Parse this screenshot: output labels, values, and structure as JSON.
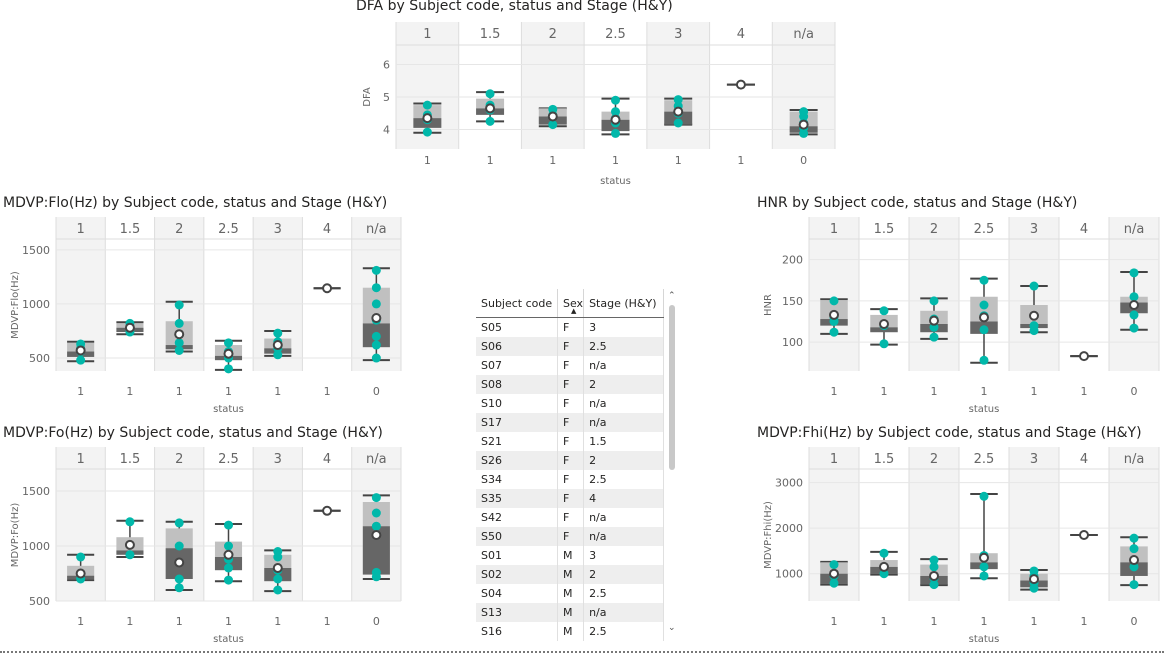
{
  "colors": {
    "teal": "#01b8aa",
    "dark": "#444444",
    "iqr_dark": "#666666",
    "iqr_light": "#c0c0c0",
    "panel_shade": "#f3f3f3",
    "grid": "#e6e6e6",
    "text": "#666666"
  },
  "chart_data": [
    {
      "id": "dfa",
      "type": "boxplot",
      "title": "DFA by Subject code, status and Stage (H&Y)",
      "ylabel": "DFA",
      "xlabel": "status",
      "ylim": [
        3.4,
        6.6
      ],
      "yticks": [
        4,
        5,
        6
      ],
      "facets": [
        "1",
        "1.5",
        "2",
        "2.5",
        "3",
        "4",
        "n/a"
      ],
      "status": [
        "1",
        "1",
        "1",
        "1",
        "1",
        "1",
        "0"
      ],
      "boxes": [
        {
          "min": 3.9,
          "q1": 4.05,
          "median": 4.35,
          "q3": 4.75,
          "max": 4.8,
          "mean": 4.35,
          "points": [
            3.92,
            4.3,
            4.45,
            4.75
          ]
        },
        {
          "min": 4.25,
          "q1": 4.45,
          "median": 4.65,
          "q3": 4.95,
          "max": 5.15,
          "mean": 4.65,
          "points": [
            4.25,
            4.6,
            4.75,
            5.1
          ]
        },
        {
          "min": 4.1,
          "q1": 4.15,
          "median": 4.4,
          "q3": 4.65,
          "max": 4.65,
          "mean": 4.4,
          "points": [
            4.15,
            4.45,
            4.62
          ]
        },
        {
          "min": 3.85,
          "q1": 3.95,
          "median": 4.3,
          "q3": 4.55,
          "max": 4.95,
          "mean": 4.3,
          "points": [
            3.88,
            4.2,
            4.35,
            4.55,
            4.9
          ]
        },
        {
          "min": 4.15,
          "q1": 4.15,
          "median": 4.55,
          "q3": 4.9,
          "max": 4.95,
          "mean": 4.55,
          "points": [
            4.2,
            4.5,
            4.72,
            4.92
          ]
        },
        {
          "min": 5.38,
          "q1": 5.38,
          "median": 5.38,
          "q3": 5.38,
          "max": 5.38,
          "mean": 5.38,
          "points": []
        },
        {
          "min": 3.85,
          "q1": 3.9,
          "median": 4.1,
          "q3": 4.55,
          "max": 4.6,
          "mean": 4.15,
          "points": [
            3.88,
            4.05,
            4.2,
            4.4,
            4.55
          ]
        }
      ]
    },
    {
      "id": "flo",
      "type": "boxplot",
      "title": "MDVP:Flo(Hz) by Subject code, status and Stage (H&Y)",
      "ylabel": "MDVP:Flo(Hz)",
      "xlabel": "status",
      "ylim": [
        380,
        1600
      ],
      "yticks": [
        500,
        1000,
        1500
      ],
      "facets": [
        "1",
        "1.5",
        "2",
        "2.5",
        "3",
        "4",
        "n/a"
      ],
      "status": [
        "1",
        "1",
        "1",
        "1",
        "1",
        "1",
        "0"
      ],
      "boxes": [
        {
          "min": 470,
          "q1": 510,
          "median": 560,
          "q3": 640,
          "max": 650,
          "mean": 570,
          "points": [
            480,
            560,
            590,
            630
          ]
        },
        {
          "min": 720,
          "q1": 740,
          "median": 780,
          "q3": 820,
          "max": 830,
          "mean": 780,
          "points": [
            740,
            780,
            820
          ]
        },
        {
          "min": 560,
          "q1": 580,
          "median": 620,
          "q3": 840,
          "max": 1020,
          "mean": 720,
          "points": [
            570,
            640,
            820,
            990
          ]
        },
        {
          "min": 390,
          "q1": 480,
          "median": 520,
          "q3": 620,
          "max": 660,
          "mean": 540,
          "points": [
            400,
            500,
            560,
            640
          ]
        },
        {
          "min": 520,
          "q1": 540,
          "median": 590,
          "q3": 680,
          "max": 750,
          "mean": 620,
          "points": [
            530,
            590,
            650,
            730
          ]
        },
        {
          "min": 1145,
          "q1": 1145,
          "median": 1145,
          "q3": 1145,
          "max": 1145,
          "mean": 1145,
          "points": []
        },
        {
          "min": 480,
          "q1": 600,
          "median": 820,
          "q3": 1150,
          "max": 1330,
          "mean": 870,
          "points": [
            500,
            620,
            700,
            850,
            1000,
            1150,
            1310
          ]
        }
      ]
    },
    {
      "id": "fo",
      "type": "boxplot",
      "title": "MDVP:Fo(Hz) by Subject code, status and Stage (H&Y)",
      "ylabel": "MDVP:Fo(Hz)",
      "xlabel": "status",
      "ylim": [
        500,
        1700
      ],
      "yticks": [
        500,
        1000,
        1500
      ],
      "facets": [
        "1",
        "1.5",
        "2",
        "2.5",
        "3",
        "4",
        "n/a"
      ],
      "status": [
        "1",
        "1",
        "1",
        "1",
        "1",
        "1",
        "0"
      ],
      "boxes": [
        {
          "min": 690,
          "q1": 700,
          "median": 730,
          "q3": 820,
          "max": 920,
          "mean": 750,
          "points": [
            700,
            750,
            900
          ]
        },
        {
          "min": 900,
          "q1": 920,
          "median": 960,
          "q3": 1080,
          "max": 1230,
          "mean": 1010,
          "points": [
            920,
            1010,
            1220
          ]
        },
        {
          "min": 600,
          "q1": 700,
          "median": 980,
          "q3": 1160,
          "max": 1220,
          "mean": 850,
          "points": [
            620,
            700,
            1000,
            1210
          ]
        },
        {
          "min": 680,
          "q1": 780,
          "median": 900,
          "q3": 1040,
          "max": 1200,
          "mean": 920,
          "points": [
            690,
            800,
            880,
            1000,
            1190
          ]
        },
        {
          "min": 590,
          "q1": 680,
          "median": 800,
          "q3": 920,
          "max": 960,
          "mean": 800,
          "points": [
            600,
            700,
            780,
            900,
            950
          ]
        },
        {
          "min": 1320,
          "q1": 1320,
          "median": 1320,
          "q3": 1320,
          "max": 1320,
          "mean": 1320,
          "points": []
        },
        {
          "min": 700,
          "q1": 740,
          "median": 1180,
          "q3": 1400,
          "max": 1460,
          "mean": 1100,
          "points": [
            720,
            760,
            1180,
            1300,
            1440
          ]
        }
      ]
    },
    {
      "id": "hnr",
      "type": "boxplot",
      "title": "HNR by Subject code, status and Stage (H&Y)",
      "ylabel": "HNR",
      "xlabel": "status",
      "ylim": [
        65,
        225
      ],
      "yticks": [
        100,
        150,
        200
      ],
      "facets": [
        "1",
        "1.5",
        "2",
        "2.5",
        "3",
        "4",
        "n/a"
      ],
      "status": [
        "1",
        "1",
        "1",
        "1",
        "1",
        "1",
        "0"
      ],
      "boxes": [
        {
          "min": 110,
          "q1": 120,
          "median": 128,
          "q3": 150,
          "max": 152,
          "mean": 133,
          "points": [
            112,
            125,
            130,
            150
          ]
        },
        {
          "min": 97,
          "q1": 112,
          "median": 118,
          "q3": 133,
          "max": 140,
          "mean": 122,
          "points": [
            98,
            120,
            138
          ]
        },
        {
          "min": 104,
          "q1": 112,
          "median": 122,
          "q3": 138,
          "max": 153,
          "mean": 126,
          "points": [
            106,
            118,
            128,
            150
          ]
        },
        {
          "min": 75,
          "q1": 110,
          "median": 125,
          "q3": 155,
          "max": 177,
          "mean": 130,
          "points": [
            78,
            115,
            132,
            145,
            175
          ]
        },
        {
          "min": 112,
          "q1": 117,
          "median": 122,
          "q3": 145,
          "max": 168,
          "mean": 132,
          "points": [
            114,
            120,
            168
          ]
        },
        {
          "min": 83,
          "q1": 83,
          "median": 83,
          "q3": 83,
          "max": 83,
          "mean": 83,
          "points": []
        },
        {
          "min": 115,
          "q1": 135,
          "median": 148,
          "q3": 155,
          "max": 185,
          "mean": 145,
          "points": [
            117,
            133,
            145,
            155,
            184
          ]
        }
      ]
    },
    {
      "id": "fhi",
      "type": "boxplot",
      "title": "MDVP:Fhi(Hz) by Subject code, status and Stage (H&Y)",
      "ylabel": "MDVP:Fhi(Hz)",
      "xlabel": "status",
      "ylim": [
        400,
        3300
      ],
      "yticks": [
        1000,
        2000,
        3000
      ],
      "facets": [
        "1",
        "1.5",
        "2",
        "2.5",
        "3",
        "4",
        "n/a"
      ],
      "status": [
        "1",
        "1",
        "1",
        "1",
        "1",
        "1",
        "0"
      ],
      "boxes": [
        {
          "min": 760,
          "q1": 780,
          "median": 1000,
          "q3": 1250,
          "max": 1260,
          "mean": 1000,
          "points": [
            790,
            950,
            1200
          ]
        },
        {
          "min": 980,
          "q1": 1000,
          "median": 1150,
          "q3": 1300,
          "max": 1480,
          "mean": 1150,
          "points": [
            1000,
            1150,
            1450
          ]
        },
        {
          "min": 750,
          "q1": 760,
          "median": 950,
          "q3": 1200,
          "max": 1320,
          "mean": 950,
          "points": [
            760,
            900,
            1150,
            1300
          ]
        },
        {
          "min": 900,
          "q1": 1100,
          "median": 1250,
          "q3": 1450,
          "max": 2750,
          "mean": 1350,
          "points": [
            950,
            1150,
            1400,
            2700
          ]
        },
        {
          "min": 650,
          "q1": 700,
          "median": 850,
          "q3": 1000,
          "max": 1080,
          "mean": 880,
          "points": [
            680,
            800,
            950,
            1060
          ]
        },
        {
          "min": 1850,
          "q1": 1850,
          "median": 1850,
          "q3": 1850,
          "max": 1850,
          "mean": 1850,
          "points": []
        },
        {
          "min": 750,
          "q1": 950,
          "median": 1250,
          "q3": 1600,
          "max": 1800,
          "mean": 1300,
          "points": [
            760,
            1150,
            1300,
            1550,
            1780
          ]
        }
      ]
    }
  ],
  "table": {
    "headers": [
      "Subject code",
      "Sex",
      "Stage (H&Y)"
    ],
    "sort_indicator": "▲",
    "rows": [
      [
        "S05",
        "F",
        "3"
      ],
      [
        "S06",
        "F",
        "2.5"
      ],
      [
        "S07",
        "F",
        "n/a"
      ],
      [
        "S08",
        "F",
        "2"
      ],
      [
        "S10",
        "F",
        "n/a"
      ],
      [
        "S17",
        "F",
        "n/a"
      ],
      [
        "S21",
        "F",
        "1.5"
      ],
      [
        "S26",
        "F",
        "2"
      ],
      [
        "S34",
        "F",
        "2.5"
      ],
      [
        "S35",
        "F",
        "4"
      ],
      [
        "S42",
        "F",
        "n/a"
      ],
      [
        "S50",
        "F",
        "n/a"
      ],
      [
        "S01",
        "M",
        "3"
      ],
      [
        "S02",
        "M",
        "2"
      ],
      [
        "S04",
        "M",
        "2.5"
      ],
      [
        "S13",
        "M",
        "n/a"
      ],
      [
        "S16",
        "M",
        "2.5"
      ]
    ]
  },
  "scrollbar": {
    "up_icon": "chevron-up-icon",
    "down_icon": "chevron-down-icon"
  }
}
